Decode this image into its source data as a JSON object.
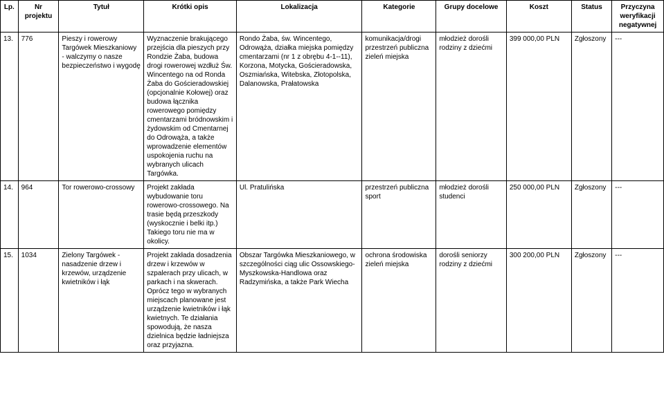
{
  "headers": {
    "lp": "Lp.",
    "nr": "Nr projektu",
    "tytul": "Tytuł",
    "opis": "Krótki opis",
    "lokalizacja": "Lokalizacja",
    "kategorie": "Kategorie",
    "grupy": "Grupy docelowe",
    "koszt": "Koszt",
    "status": "Status",
    "przyczyna": "Przyczyna weryfikacji negatywnej"
  },
  "rows": [
    {
      "lp": "13.",
      "nr": "776",
      "tytul": "Pieszy i rowerowy Targówek Mieszkaniowy - walczymy o nasze bezpieczeństwo i wygodę",
      "opis": "Wyznaczenie brakującego przejścia dla pieszych przy Rondzie Żaba, budowa drogi rowerowej wzdłuż Św. Wincentego na od Ronda Żaba do Gościeradowskiej (opcjonalnie Kołowej) oraz budowa łącznika rowerowego pomiędzy cmentarzami bródnowskim i żydowskim od Cmentarnej do Odrowąża, a także wprowadzenie elementów uspokojenia ruchu na wybranych ulicach Targówka.",
      "lokalizacja": "Rondo Żaba, św. Wincentego, Odrowąża, działka miejska pomiędzy cmentarzami (nr 1 z obrębu 4-1--11), Korzona, Motycka, Gościeradowska, Oszmiańska, Witebska, Złotopolska, Dalanowska, Prałatowska",
      "kategorie": "komunikacja/drogi przestrzeń publiczna zieleń miejska",
      "grupy": "młodzież dorośli rodziny z dziećmi",
      "koszt": "399 000,00 PLN",
      "status": "Zgłoszony",
      "przyczyna": "---"
    },
    {
      "lp": "14.",
      "nr": "964",
      "tytul": "Tor rowerowo-crossowy",
      "opis": "Projekt zakłada wybudowanie toru rowerowo-crossowego. Na trasie będą przeszkody (wyskocznie i belki itp.) Takiego toru nie ma w okolicy.",
      "lokalizacja": "Ul. Pratulińska",
      "kategorie": "przestrzeń publiczna sport",
      "grupy": "młodzież dorośli studenci",
      "koszt": "250 000,00 PLN",
      "status": "Zgłoszony",
      "przyczyna": "---"
    },
    {
      "lp": "15.",
      "nr": "1034",
      "tytul": "Zielony Targówek - nasadzenie drzew i krzewów, urządzenie kwietników i łąk",
      "opis": "Projekt zakłada dosadzenia drzew i krzewów w szpalerach przy ulicach, w parkach i na skwerach. Oprócz tego w wybranych miejscach planowane jest urządzenie kwietników i łąk kwietnych. Te działania spowodują, że nasza dzielnica będzie ładniejsza oraz przyjazna.",
      "lokalizacja": "Obszar Targówka Mieszkaniowego, w szczególności ciąg ulic Ossowskiego-Myszkowska-Handlowa oraz Radzymińska, a także Park Wiecha",
      "kategorie": "ochrona środowiska zieleń miejska",
      "grupy": "dorośli seniorzy rodziny z dziećmi",
      "koszt": "300 200,00 PLN",
      "status": "Zgłoszony",
      "przyczyna": "---"
    }
  ]
}
